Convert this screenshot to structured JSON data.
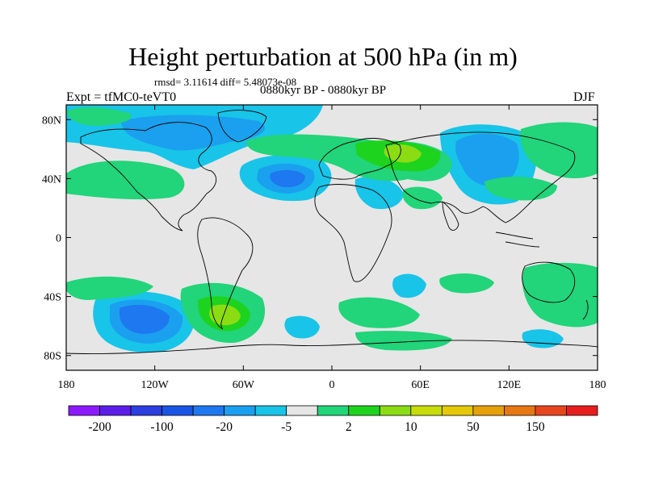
{
  "title": "Height perturbation at 500 hPa (in m)",
  "stats": "rmsd= 3.11614  diff= 5.48073e-08",
  "period": "0880kyr BP - 0880kyr BP",
  "expt": "Expt = tfMC0-teVT0",
  "season": "DJF",
  "y_axis": {
    "ticks": [
      "80N",
      "40N",
      "0",
      "40S",
      "80S"
    ]
  },
  "x_axis": {
    "ticks": [
      "180",
      "120W",
      "60W",
      "0",
      "60E",
      "120E",
      "180"
    ]
  },
  "colorbar": {
    "colors": [
      "#8c1aff",
      "#5a1ee8",
      "#2b3fe0",
      "#1a55e6",
      "#1e78ef",
      "#1aa0ef",
      "#18c4e8",
      "#e6e6e6",
      "#22d47a",
      "#1ed31e",
      "#8cdc14",
      "#c8dc0a",
      "#e6c80a",
      "#e6a00a",
      "#e67814",
      "#e6461e",
      "#e61e1e"
    ],
    "labels": [
      "-200",
      "-100",
      "-20",
      "-5",
      "2",
      "10",
      "50",
      "150"
    ]
  },
  "map": {
    "background": "#e6e6e6",
    "projection": "cylindrical equidistant, 180W-180E, 90S-90N"
  }
}
